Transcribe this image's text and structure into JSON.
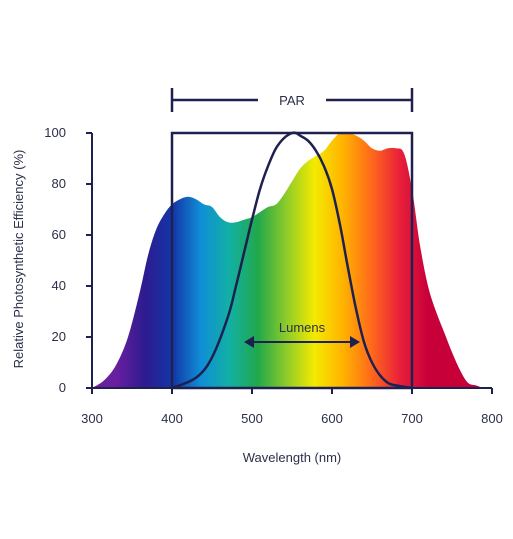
{
  "chart_data": {
    "type": "area",
    "xlabel": "Wavelength (nm)",
    "ylabel": "Relative Photosynthetic Efficiency (%)",
    "xlim": [
      300,
      800
    ],
    "ylim": [
      0,
      100
    ],
    "x_ticks": [
      "300",
      "400",
      "500",
      "600",
      "700",
      "800"
    ],
    "y_ticks": [
      "0",
      "20",
      "40",
      "60",
      "80",
      "100"
    ],
    "grid": false,
    "colors": {
      "axis": "#1e2150",
      "curve": "#1e2150",
      "spectrum": [
        "#6a1fa0",
        "#2d1b8f",
        "#1336a8",
        "#0f8fd6",
        "#12b0a4",
        "#21a84a",
        "#8ccb2a",
        "#f4ea00",
        "#ffb300",
        "#ff6a1a",
        "#e8203a",
        "#c8003a"
      ]
    },
    "series": [
      {
        "x": [
          300,
          315,
          330,
          345,
          360,
          370,
          380,
          390,
          400,
          410,
          420,
          430,
          440,
          450,
          460,
          470,
          480,
          490,
          500,
          510,
          520,
          530,
          540,
          550,
          560,
          570,
          580,
          590,
          600,
          610,
          620,
          630,
          640,
          650,
          660,
          670,
          680,
          690,
          700,
          710,
          720,
          730,
          740,
          750,
          760,
          770,
          780,
          790,
          800
        ],
        "values": [
          0,
          3,
          9,
          20,
          38,
          52,
          62,
          68,
          72,
          74,
          75,
          74,
          72,
          71,
          67,
          65,
          65,
          66,
          67,
          69,
          71,
          72,
          76,
          81,
          86,
          89,
          91,
          93,
          97,
          100,
          100,
          99,
          97,
          94,
          93,
          94,
          94,
          92,
          78,
          56,
          40,
          30,
          22,
          14,
          7,
          2,
          1,
          0,
          0
        ]
      },
      {
        "x": [
          400,
          430,
          450,
          470,
          480,
          490,
          500,
          510,
          520,
          530,
          540,
          550,
          555,
          560,
          570,
          580,
          590,
          600,
          610,
          620,
          630,
          640,
          650,
          660,
          670,
          680,
          700
        ],
        "values": [
          0,
          4,
          12,
          28,
          40,
          53,
          66,
          78,
          87,
          94,
          98,
          100,
          100,
          99,
          97,
          93,
          87,
          78,
          64,
          47,
          31,
          18,
          10,
          5,
          2,
          1,
          0
        ]
      }
    ],
    "annotations": {
      "par": {
        "label": "PAR",
        "x_range": [
          400,
          700
        ]
      },
      "lumens": {
        "label": "Lumens",
        "x_range": [
          490,
          635
        ],
        "y": 20
      }
    }
  }
}
